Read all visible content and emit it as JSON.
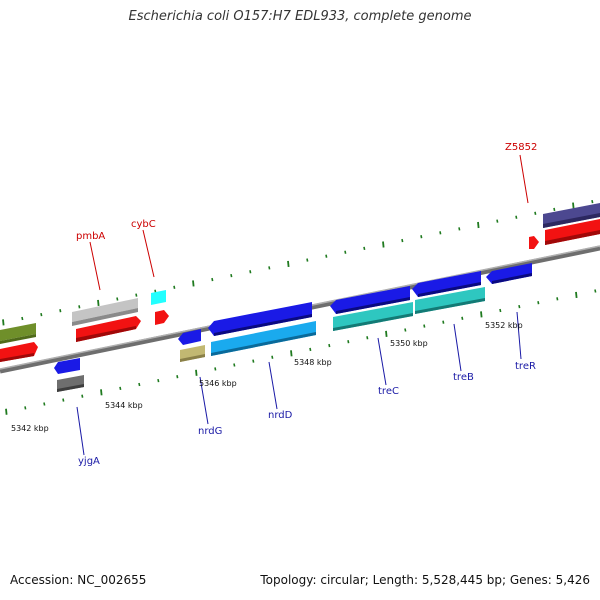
{
  "title": "Escherichia coli O157:H7 EDL933, complete genome",
  "footer": {
    "accession": "Accession: NC_002655",
    "topology": "Topology: circular; Length: 5,528,445 bp; Genes: 5,426"
  },
  "scale": {
    "unit": "kbp",
    "labels": [
      "5342 kbp",
      "5344 kbp",
      "5346 kbp",
      "5348 kbp",
      "5350 kbp",
      "5352 kbp"
    ]
  },
  "colors": {
    "backbone": "#808080",
    "tick": "#1f7a1f",
    "label_red": "#cc0000",
    "label_blue": "#1a1aa6",
    "gene_red": "#f21212",
    "gene_blue": "#1a1ae6",
    "gene_cyan": "#2ec7c0",
    "gene_lightblue": "#1aaaee",
    "gene_gray": "#bcbcbc",
    "gene_darkgray": "#6e6e6e",
    "gene_olive": "#6f8f2a",
    "gene_khaki": "#c2b872",
    "gene_navy": "#4c4890"
  },
  "gene_labels": {
    "top": [
      "pmbA",
      "cybC",
      "Z5852"
    ],
    "bottom": [
      "yjgA",
      "nrdG",
      "nrdD",
      "treC",
      "treB",
      "treR"
    ]
  }
}
